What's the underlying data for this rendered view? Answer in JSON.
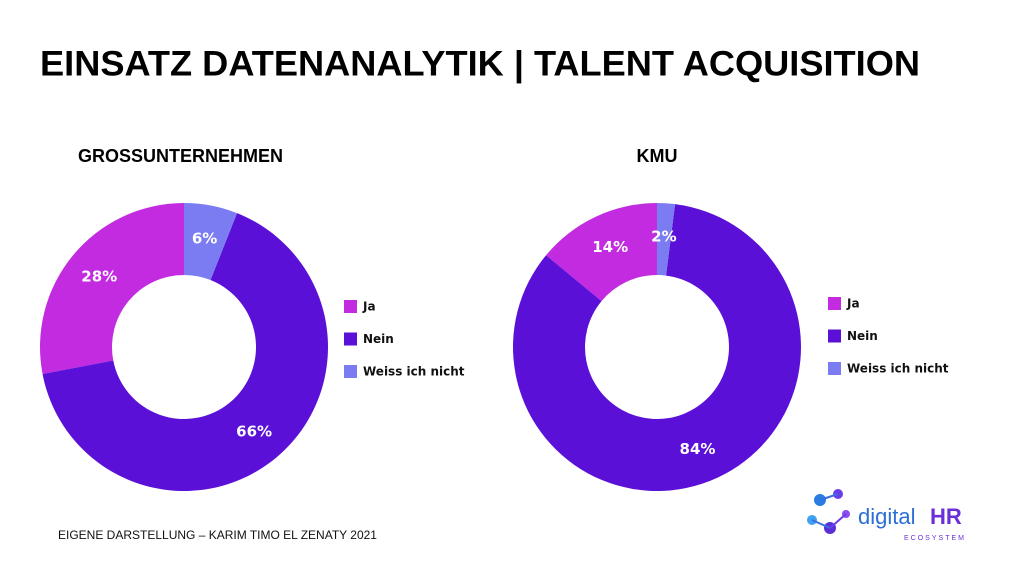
{
  "title": "EINSATZ DATENANALYTIK | TALENT ACQUISITION",
  "source": "EIGENE DARSTELLUNG – KARIM TIMO EL ZENATY 2021",
  "logo": {
    "word": "digital",
    "accent": "HR",
    "tagline": "ECOSYSTEM"
  },
  "chart_data": [
    {
      "type": "pie",
      "donut": true,
      "title": "GROSSUNTERNEHMEN",
      "categories": [
        "Ja",
        "Nein",
        "Weiss ich nicht"
      ],
      "values": [
        28,
        66,
        6
      ],
      "value_labels": [
        "28%",
        "66%",
        "6%"
      ],
      "colors": [
        "#c32be0",
        "#5b10d8",
        "#7b7cf2"
      ]
    },
    {
      "type": "pie",
      "donut": true,
      "title": "KMU",
      "categories": [
        "Ja",
        "Nein",
        "Weiss ich nicht"
      ],
      "values": [
        14,
        84,
        2
      ],
      "value_labels": [
        "14%",
        "84%",
        "2%"
      ],
      "colors": [
        "#c32be0",
        "#5b10d8",
        "#7b7cf2"
      ]
    }
  ]
}
